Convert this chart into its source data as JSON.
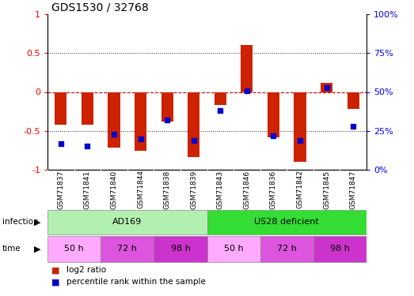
{
  "title": "GDS1530 / 32768",
  "samples": [
    "GSM71837",
    "GSM71841",
    "GSM71840",
    "GSM71844",
    "GSM71838",
    "GSM71839",
    "GSM71843",
    "GSM71846",
    "GSM71836",
    "GSM71842",
    "GSM71845",
    "GSM71847"
  ],
  "log2_ratio": [
    -0.42,
    -0.42,
    -0.72,
    -0.76,
    -0.38,
    -0.84,
    -0.17,
    0.6,
    -0.58,
    -0.9,
    0.12,
    -0.22
  ],
  "percentile_rank": [
    17,
    15,
    23,
    20,
    32,
    19,
    38,
    51,
    22,
    19,
    53,
    28
  ],
  "infection_groups": [
    {
      "label": "AD169",
      "start": 0,
      "end": 6,
      "color": "#b2f0b2"
    },
    {
      "label": "US28 deficient",
      "start": 6,
      "end": 12,
      "color": "#33dd33"
    }
  ],
  "time_groups": [
    {
      "label": "50 h",
      "start": 0,
      "end": 2,
      "color": "#ffaaff"
    },
    {
      "label": "72 h",
      "start": 2,
      "end": 4,
      "color": "#dd55dd"
    },
    {
      "label": "98 h",
      "start": 4,
      "end": 6,
      "color": "#cc33cc"
    },
    {
      "label": "50 h",
      "start": 6,
      "end": 8,
      "color": "#ffaaff"
    },
    {
      "label": "72 h",
      "start": 8,
      "end": 10,
      "color": "#dd55dd"
    },
    {
      "label": "98 h",
      "start": 10,
      "end": 12,
      "color": "#cc33cc"
    }
  ],
  "bar_color": "#cc2200",
  "dot_color": "#0000cc",
  "ylim_left": [
    -1.0,
    1.0
  ],
  "ylim_right": [
    0,
    100
  ],
  "yticks_left": [
    -1.0,
    -0.5,
    0.0,
    0.5,
    1.0
  ],
  "yticks_right": [
    0,
    25,
    50,
    75,
    100
  ],
  "ytick_labels_right": [
    "0%",
    "25%",
    "50%",
    "75%",
    "100%"
  ],
  "hline_color": "#cc0000",
  "dotted_color": "#222222",
  "bar_width": 0.45,
  "dot_size": 5,
  "sample_bg_color": "#cccccc",
  "sample_sep_color": "#888888"
}
